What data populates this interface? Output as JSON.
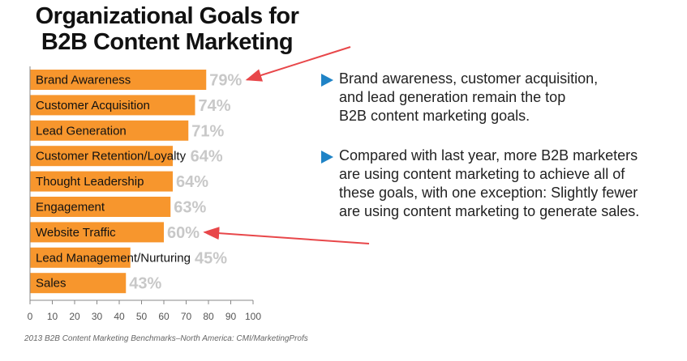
{
  "title": {
    "line1": "Organizational Goals for",
    "line2": "B2B Content Marketing"
  },
  "chart_data": {
    "type": "bar",
    "orientation": "horizontal",
    "title": "Organizational Goals for B2B Content Marketing",
    "categories": [
      "Brand Awareness",
      "Customer Acquisition",
      "Lead Generation",
      "Customer Retention/Loyalty",
      "Thought Leadership",
      "Engagement",
      "Website Traffic",
      "Lead Management/Nurturing",
      "Sales"
    ],
    "values": [
      79,
      74,
      71,
      64,
      64,
      63,
      60,
      45,
      43
    ],
    "value_labels": [
      "79%",
      "74%",
      "71%",
      "64%",
      "64%",
      "63%",
      "60%",
      "45%",
      "43%"
    ],
    "xlim": [
      0,
      100
    ],
    "xticks": [
      0,
      10,
      20,
      30,
      40,
      50,
      60,
      70,
      80,
      90,
      100
    ],
    "grid": false,
    "bar_color": "#f7962d",
    "value_label_color": "#c8c8c8",
    "highlighted_categories": [
      "Brand Awareness",
      "Website Traffic"
    ]
  },
  "bullets": [
    {
      "text": "Brand awareness, customer acquisition,\nand lead generation remain the top\nB2B content marketing goals."
    },
    {
      "text": "Compared with last year, more B2B marketers\nare using content marketing to achieve all of\nthese goals, with one exception:  Slightly fewer\nare using content marketing to generate sales."
    }
  ],
  "source": "2013 B2B Content Marketing Benchmarks–North America: CMI/MarketingProfs",
  "colors": {
    "accent_arrow": "#e8474a",
    "bullet_icon": "#1f83c6"
  }
}
